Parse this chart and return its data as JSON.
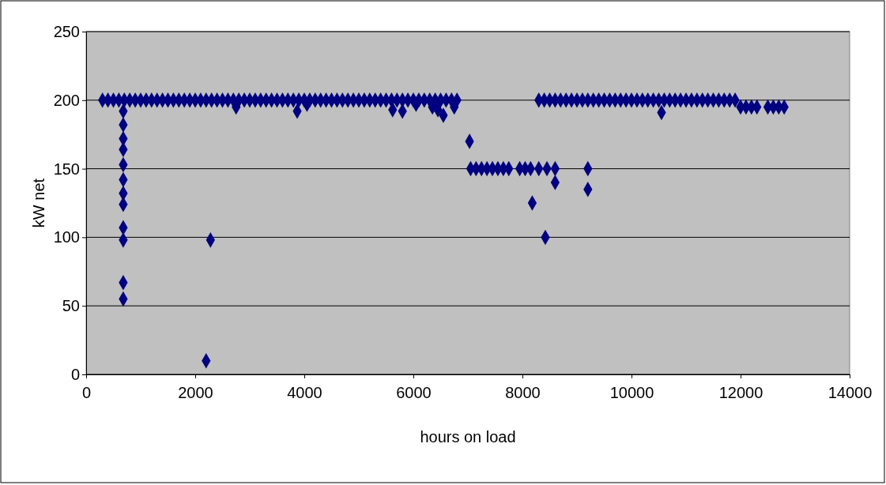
{
  "chart_data": {
    "type": "scatter",
    "xlabel": "hours on load",
    "ylabel": "kW net",
    "xlim": [
      0,
      14000
    ],
    "ylim": [
      0,
      250
    ],
    "xticks": [
      0,
      2000,
      4000,
      6000,
      8000,
      10000,
      12000,
      14000
    ],
    "yticks": [
      0,
      50,
      100,
      150,
      200,
      250
    ],
    "grid": "y",
    "marker": "diamond",
    "series": [
      {
        "color": "#000080",
        "x": [
          300,
          400,
          500,
          600,
          700,
          800,
          900,
          1000,
          1100,
          1200,
          1300,
          1400,
          1500,
          1600,
          1700,
          1800,
          1900,
          2000,
          2100,
          2200,
          2300,
          2400,
          2500,
          2600,
          2700,
          2800,
          2900,
          3000,
          3100,
          3200,
          3300,
          3400,
          3500,
          3600,
          3700,
          3800,
          3900,
          4000,
          4100,
          4200,
          4300,
          4400,
          4500,
          4600,
          4700,
          4800,
          4900,
          5000,
          5100,
          5200,
          5300,
          5400,
          5500,
          5600,
          5700,
          5800,
          5900,
          6000,
          6100,
          6200,
          6300,
          6400,
          6500,
          6600,
          6700,
          6800
        ],
        "values": [
          200,
          200,
          200,
          200,
          200,
          200,
          200,
          200,
          200,
          200,
          200,
          200,
          200,
          200,
          200,
          200,
          200,
          200,
          200,
          200,
          200,
          200,
          200,
          200,
          200,
          200,
          200,
          200,
          200,
          200,
          200,
          200,
          200,
          200,
          200,
          200,
          200,
          200,
          200,
          200,
          200,
          200,
          200,
          200,
          200,
          200,
          200,
          200,
          200,
          200,
          200,
          200,
          200,
          200,
          200,
          200,
          200,
          200,
          200,
          200,
          200,
          200,
          200,
          200,
          200,
          200
        ]
      },
      {
        "color": "#000080",
        "x": [
          680,
          680,
          680,
          680,
          680,
          680,
          680,
          680,
          680,
          680,
          680,
          680
        ],
        "values": [
          192,
          182,
          172,
          164,
          153,
          142,
          132,
          124,
          107,
          98,
          67,
          55
        ]
      },
      {
        "color": "#000080",
        "x": [
          2200,
          2280,
          2750,
          3870,
          4050,
          5620,
          5800,
          6050,
          6350,
          6450,
          6550,
          6750,
          7030,
          8180,
          8420,
          8600,
          9200,
          10550
        ],
        "values": [
          10,
          98,
          195,
          192,
          197,
          193,
          192,
          197,
          195,
          193,
          189,
          195,
          170,
          125,
          100,
          140,
          135,
          191
        ]
      },
      {
        "color": "#000080",
        "x": [
          7050,
          7150,
          7250,
          7350,
          7450,
          7550,
          7650,
          7750,
          7950,
          8050,
          8150,
          8300,
          8450,
          8600,
          9200
        ],
        "values": [
          150,
          150,
          150,
          150,
          150,
          150,
          150,
          150,
          150,
          150,
          150,
          150,
          150,
          150,
          150
        ]
      },
      {
        "color": "#000080",
        "x": [
          8300,
          8400,
          8500,
          8600,
          8700,
          8800,
          8900,
          9000,
          9100,
          9200,
          9300,
          9400,
          9500,
          9600,
          9700,
          9800,
          9900,
          10000,
          10100,
          10200,
          10300,
          10400,
          10500,
          10600,
          10700,
          10800,
          10900,
          11000,
          11100,
          11200,
          11300,
          11400,
          11500,
          11600,
          11700,
          11800,
          11900
        ],
        "values": [
          200,
          200,
          200,
          200,
          200,
          200,
          200,
          200,
          200,
          200,
          200,
          200,
          200,
          200,
          200,
          200,
          200,
          200,
          200,
          200,
          200,
          200,
          200,
          200,
          200,
          200,
          200,
          200,
          200,
          200,
          200,
          200,
          200,
          200,
          200,
          200,
          200
        ]
      },
      {
        "color": "#000080",
        "x": [
          12000,
          12100,
          12200,
          12300,
          12500,
          12600,
          12700,
          12800
        ],
        "values": [
          195,
          195,
          195,
          195,
          195,
          195,
          195,
          195
        ]
      }
    ]
  }
}
